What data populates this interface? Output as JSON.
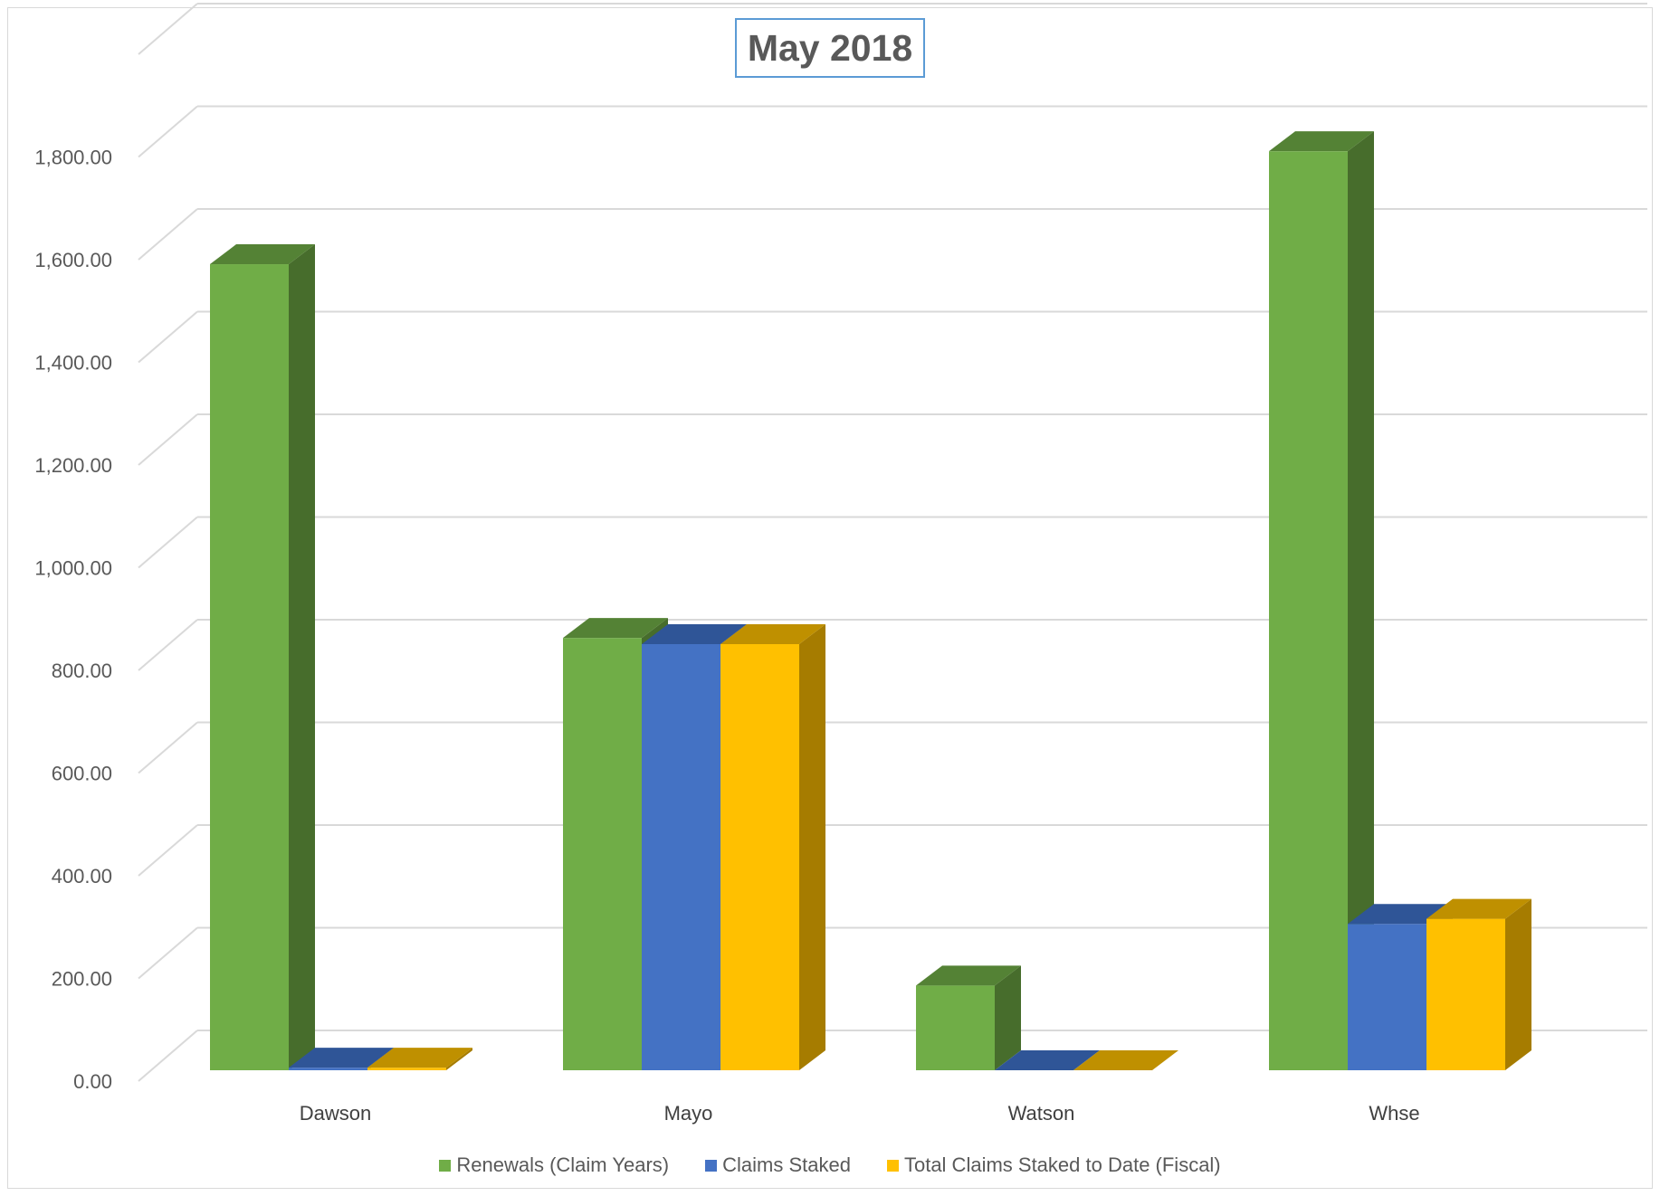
{
  "chart_data": {
    "type": "bar",
    "title": "May 2018",
    "xlabel": "",
    "ylabel": "",
    "categories": [
      "Dawson",
      "Mayo",
      "Watson",
      "Whse"
    ],
    "series": [
      {
        "name": "Renewals (Claim Years)",
        "values": [
          1570,
          842,
          165,
          1790
        ],
        "color": "#70ad47",
        "side_color": "#476d2c",
        "top_color": "#548235"
      },
      {
        "name": "Claims Staked",
        "values": [
          5,
          830,
          0,
          285
        ],
        "color": "#4472c4",
        "side_color": "#2b4a80",
        "top_color": "#2f5597"
      },
      {
        "name": "Total Claims Staked to Date (Fiscal)",
        "values": [
          5,
          830,
          0,
          295
        ],
        "color": "#ffc000",
        "side_color": "#a67c00",
        "top_color": "#bf9000"
      }
    ],
    "ylim": [
      0,
      1800
    ],
    "yticks": [
      "0.00",
      "200.00",
      "400.00",
      "600.00",
      "800.00",
      "1,000.00",
      "1,200.00",
      "1,400.00",
      "1,600.00",
      "1,800.00"
    ],
    "ytick_values": [
      0,
      200,
      400,
      600,
      800,
      1000,
      1200,
      1400,
      1600,
      1800
    ],
    "grid": true,
    "legend_position": "bottom",
    "style": "3d-clustered-column"
  }
}
